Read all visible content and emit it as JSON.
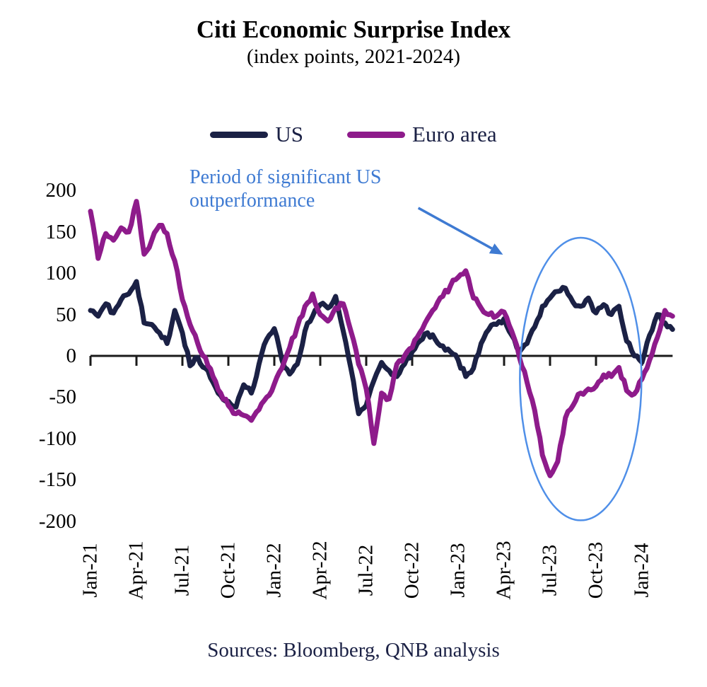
{
  "title": "Citi Economic Surprise Index",
  "subtitle": "(index points, 2021-2024)",
  "legend": {
    "items": [
      {
        "label": "US",
        "color": "#1b2145"
      },
      {
        "label": "Euro area",
        "color": "#8e1b8b"
      }
    ]
  },
  "annotation": {
    "line1": "Period of significant US",
    "line2": "outperformance",
    "color": "#3e7ad2"
  },
  "source_note": "Sources: Bloomberg, QNB analysis",
  "chart_data": {
    "type": "line",
    "title": "Citi Economic Surprise Index",
    "subtitle": "(index points, 2021-2024)",
    "ylabel": "index points",
    "ylim": [
      -200,
      200
    ],
    "y_ticks": [
      200,
      150,
      100,
      50,
      0,
      -50,
      -100,
      -150,
      -200
    ],
    "grid": false,
    "legend_position": "top",
    "x_unit": "months since Jan-2021 (0 = Jan-21)",
    "x_tick_positions": [
      0,
      3,
      6,
      9,
      12,
      15,
      18,
      21,
      24,
      27,
      30,
      33,
      36
    ],
    "x_tick_labels": [
      "Jan-21",
      "Apr-21",
      "Jul-21",
      "Oct-21",
      "Jan-22",
      "Apr-22",
      "Jul-22",
      "Oct-22",
      "Jan-23",
      "Apr-23",
      "Jul-23",
      "Oct-23",
      "Jan-24"
    ],
    "series": [
      {
        "name": "US",
        "color": "#1b2145",
        "x_start": 0,
        "x_step": 0.5,
        "values": [
          55,
          48,
          63,
          52,
          68,
          75,
          90,
          40,
          38,
          28,
          15,
          55,
          28,
          -12,
          -2,
          -15,
          -32,
          -48,
          -55,
          -62,
          -35,
          -45,
          -10,
          20,
          33,
          -5,
          -22,
          -10,
          30,
          48,
          62,
          58,
          72,
          30,
          -15,
          -70,
          -60,
          -30,
          -8,
          -18,
          -25,
          -10,
          5,
          18,
          28,
          20,
          12,
          5,
          -5,
          -25,
          -15,
          15,
          32,
          38,
          45,
          25,
          5,
          15,
          35,
          60,
          70,
          78,
          82,
          65,
          60,
          70,
          52,
          62,
          50,
          60,
          18,
          0,
          -8,
          25,
          50,
          40,
          32
        ]
      },
      {
        "name": "Euro area",
        "color": "#8e1b8b",
        "x_start": 0,
        "x_step": 0.5,
        "values": [
          175,
          118,
          148,
          140,
          155,
          150,
          187,
          123,
          140,
          158,
          148,
          115,
          68,
          38,
          15,
          -2,
          -25,
          -45,
          -60,
          -70,
          -72,
          -78,
          -65,
          -50,
          -34,
          -15,
          10,
          35,
          60,
          75,
          50,
          42,
          58,
          63,
          30,
          -10,
          -40,
          -106,
          -45,
          -52,
          -10,
          0,
          10,
          28,
          45,
          58,
          72,
          85,
          95,
          103,
          70,
          58,
          50,
          48,
          53,
          30,
          -2,
          -32,
          -66,
          -120,
          -145,
          -128,
          -75,
          -60,
          -45,
          -40,
          -37,
          -23,
          -25,
          -14,
          -42,
          -46,
          -28,
          -5,
          22,
          55,
          48
        ]
      }
    ],
    "highlight_ellipse": {
      "center_month": 32.0,
      "center_value": -28,
      "radius_months": 3.97,
      "radius_points": 171,
      "color": "#4f8fe8"
    },
    "arrow": {
      "from_month": 21.4,
      "from_value": 179,
      "to_month": 26.2,
      "to_value": 130,
      "color": "#3e7ad2"
    }
  }
}
